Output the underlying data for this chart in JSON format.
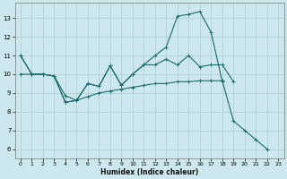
{
  "xlabel": "Humidex (Indice chaleur)",
  "bg_color": "#cce8ee",
  "grid_color": "#aacccc",
  "line_color": "#1a6b6b",
  "xlim": [
    -0.5,
    23.5
  ],
  "ylim": [
    5.5,
    13.8
  ],
  "xticks": [
    0,
    1,
    2,
    3,
    4,
    5,
    6,
    7,
    8,
    9,
    10,
    11,
    12,
    13,
    14,
    15,
    16,
    17,
    18,
    19,
    20,
    21,
    22,
    23
  ],
  "yticks": [
    6,
    7,
    8,
    9,
    10,
    11,
    12,
    13
  ],
  "series": [
    {
      "x": [
        0,
        1,
        2,
        3,
        4,
        5,
        6,
        7,
        8,
        9,
        10,
        11,
        12,
        13,
        14,
        15,
        16,
        17,
        18
      ],
      "y": [
        11.0,
        10.0,
        10.0,
        9.9,
        8.5,
        8.6,
        9.5,
        9.35,
        10.45,
        9.4,
        10.0,
        10.5,
        11.0,
        11.45,
        13.1,
        13.2,
        13.35,
        12.25,
        9.6
      ]
    },
    {
      "x": [
        0,
        1,
        2,
        3,
        4,
        5,
        6,
        7,
        8,
        9,
        10,
        11,
        12,
        13,
        14,
        15,
        16,
        17,
        18,
        19
      ],
      "y": [
        11.0,
        10.0,
        10.0,
        9.9,
        8.85,
        8.6,
        9.5,
        9.35,
        10.45,
        9.4,
        10.0,
        10.5,
        10.5,
        10.8,
        10.5,
        11.0,
        10.4,
        10.5,
        10.5,
        9.6
      ]
    },
    {
      "x": [
        0,
        1,
        2,
        3,
        4,
        5,
        6,
        7,
        8,
        9,
        10,
        11,
        12,
        13,
        14,
        15,
        16,
        17,
        18,
        19,
        20,
        21,
        22
      ],
      "y": [
        10.0,
        10.0,
        10.0,
        9.9,
        8.5,
        8.6,
        8.8,
        9.0,
        9.1,
        9.2,
        9.3,
        9.4,
        9.5,
        9.5,
        9.6,
        9.6,
        9.65,
        9.65,
        9.65,
        7.5,
        7.0,
        6.5,
        6.0
      ]
    }
  ]
}
